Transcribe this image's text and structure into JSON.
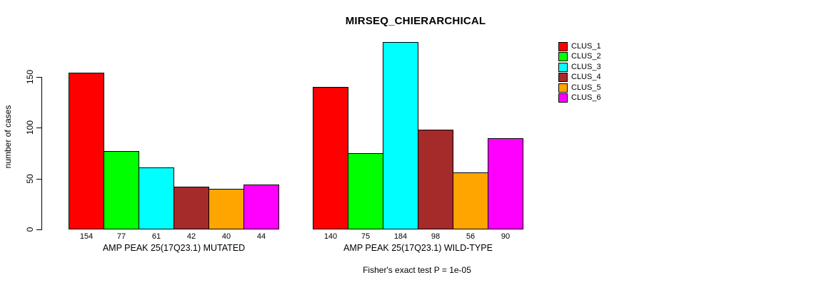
{
  "chart_data": {
    "type": "bar",
    "title": "MIRSEQ_CHIERARCHICAL",
    "ylabel": "number of cases",
    "annotation": "Fisher's exact test P = 1e-05",
    "yticks": [
      0,
      50,
      100,
      150
    ],
    "axis_range": [
      0,
      150
    ],
    "grid": false,
    "legend_position": "top-right",
    "series": [
      {
        "name": "CLUS_1",
        "color": "#FF0000",
        "values": [
          154,
          140
        ]
      },
      {
        "name": "CLUS_2",
        "color": "#00FF00",
        "values": [
          77,
          75
        ]
      },
      {
        "name": "CLUS_3",
        "color": "#00FFFF",
        "values": [
          61,
          184
        ]
      },
      {
        "name": "CLUS_4",
        "color": "#A52A2A",
        "values": [
          42,
          98
        ]
      },
      {
        "name": "CLUS_5",
        "color": "#FFA500",
        "values": [
          40,
          56
        ]
      },
      {
        "name": "CLUS_6",
        "color": "#FF00FF",
        "values": [
          44,
          90
        ]
      }
    ],
    "groups": [
      {
        "label": "AMP PEAK 25(17Q23.1) MUTATED",
        "values": [
          154,
          77,
          61,
          42,
          40,
          44
        ]
      },
      {
        "label": "AMP PEAK 25(17Q23.1) WILD-TYPE",
        "values": [
          140,
          75,
          184,
          98,
          56,
          90
        ]
      }
    ]
  }
}
